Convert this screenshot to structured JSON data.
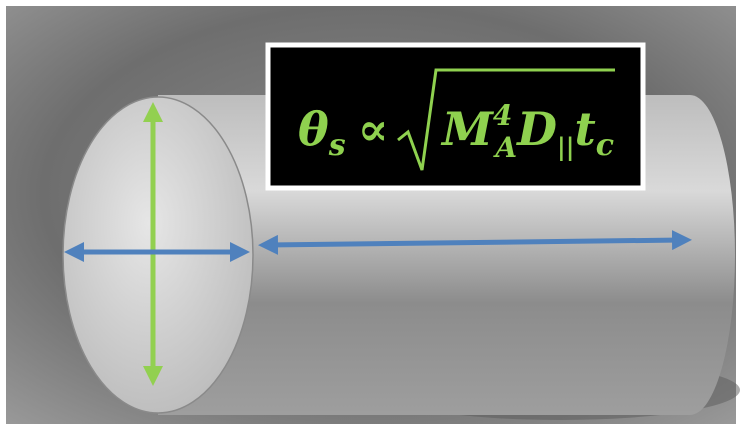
{
  "equation": {
    "lhs": "θ",
    "lhs_sub": "s",
    "relation": "∝",
    "terms": [
      {
        "base": "M",
        "sup": "4",
        "sub": "A"
      },
      {
        "base": "D",
        "sub": "||"
      },
      {
        "base": "t",
        "sub": "c"
      }
    ]
  }
}
